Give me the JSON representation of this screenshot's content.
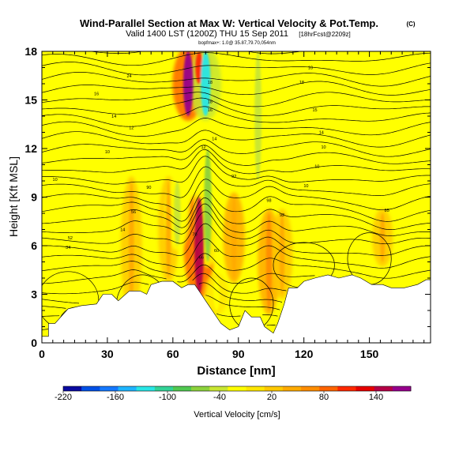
{
  "chart_data": {
    "type": "heatmap",
    "title": "Wind-Parallel Section at Max W: Vertical Velocity & Pot.Temp.",
    "title_badge": "(C)",
    "subtitle": "Valid 1400 LST (1200Z) THU 15 Sep 2011",
    "subtitle_note": "[18hrFcst@2209z]",
    "info_line": "bopfmax+: 1.0@ 35.87,79.70,054nm",
    "xlabel": "Distance [nm]",
    "ylabel": "Height [Kft MSL]",
    "xlim": [
      0,
      178
    ],
    "ylim": [
      0,
      18
    ],
    "x_ticks": [
      0,
      30,
      60,
      90,
      120,
      150
    ],
    "y_ticks": [
      0,
      3,
      6,
      9,
      12,
      15,
      18
    ],
    "colorbar_label": "Vertical Velocity [cm/s]",
    "colorbar_tick_labels": [
      "-220",
      "-160",
      "-100",
      "-40",
      "20",
      "80",
      "140"
    ],
    "colorbar_range": [
      -220,
      180
    ],
    "colorbar_colors": [
      "#0a0aa0",
      "#0050e6",
      "#1478ff",
      "#1eb4ff",
      "#28e6e6",
      "#32d296",
      "#50c850",
      "#8cd23c",
      "#c8e632",
      "#ffff00",
      "#ffe600",
      "#ffc800",
      "#ffaa00",
      "#ff8c00",
      "#ff6400",
      "#ff2800",
      "#e60000",
      "#b40046",
      "#96008c"
    ],
    "background_value": 20,
    "updraft_features": [
      {
        "x": 41,
        "z_range": [
          2,
          10
        ],
        "value": 45
      },
      {
        "x": 58,
        "z_range": [
          4,
          10
        ],
        "value": 40
      },
      {
        "x": 72,
        "z_range": [
          3,
          9
        ],
        "value": 150
      },
      {
        "x": 88,
        "z_range": [
          4,
          9
        ],
        "value": 50
      },
      {
        "x": 104,
        "z_range": [
          2,
          8
        ],
        "value": 60
      },
      {
        "x": 110,
        "z_range": [
          3,
          8
        ],
        "value": 45
      },
      {
        "x": 156,
        "z_range": [
          5,
          8
        ],
        "value": 40
      },
      {
        "x": 67,
        "z_range": [
          14,
          18
        ],
        "value": 160
      },
      {
        "x": 72,
        "z_range": [
          16,
          18
        ],
        "value": 100
      }
    ],
    "downdraft_features": [
      {
        "x": 62,
        "z_range": [
          6,
          10
        ],
        "value": -40
      },
      {
        "x": 75,
        "z_range": [
          14,
          18
        ],
        "value": -120
      },
      {
        "x": 76,
        "z_range": [
          5,
          12
        ],
        "value": -60
      },
      {
        "x": 99,
        "z_range": [
          10,
          18
        ],
        "value": -50
      },
      {
        "x": 80,
        "z_range": [
          2,
          4
        ],
        "value": -30
      }
    ],
    "theta_contour_labels": [
      {
        "x": 40,
        "z": 16.5,
        "text": "24"
      },
      {
        "x": 25,
        "z": 15.4,
        "text": "16"
      },
      {
        "x": 33,
        "z": 14.0,
        "text": "14"
      },
      {
        "x": 41,
        "z": 13.3,
        "text": "12"
      },
      {
        "x": 30,
        "z": 11.8,
        "text": "10"
      },
      {
        "x": 6,
        "z": 10.1,
        "text": "10"
      },
      {
        "x": 49,
        "z": 9.6,
        "text": "90"
      },
      {
        "x": 42,
        "z": 8.1,
        "text": "56"
      },
      {
        "x": 37,
        "z": 7.0,
        "text": "14"
      },
      {
        "x": 13,
        "z": 6.5,
        "text": "52"
      },
      {
        "x": 12,
        "z": 5.9,
        "text": "34"
      },
      {
        "x": 70,
        "z": 6.7,
        "text": "70"
      },
      {
        "x": 73,
        "z": 5.3,
        "text": "66"
      },
      {
        "x": 80,
        "z": 5.7,
        "text": "60"
      },
      {
        "x": 77,
        "z": 16.1,
        "text": "18"
      },
      {
        "x": 77,
        "z": 14.9,
        "text": "18"
      },
      {
        "x": 77,
        "z": 14.4,
        "text": "16"
      },
      {
        "x": 79,
        "z": 12.6,
        "text": "14"
      },
      {
        "x": 74,
        "z": 12.1,
        "text": "12"
      },
      {
        "x": 88,
        "z": 10.3,
        "text": "92"
      },
      {
        "x": 104,
        "z": 8.8,
        "text": "98"
      },
      {
        "x": 110,
        "z": 7.9,
        "text": "92"
      },
      {
        "x": 123,
        "z": 17.0,
        "text": "10"
      },
      {
        "x": 119,
        "z": 16.1,
        "text": "18"
      },
      {
        "x": 125,
        "z": 14.4,
        "text": "15"
      },
      {
        "x": 128,
        "z": 13.0,
        "text": "14"
      },
      {
        "x": 129,
        "z": 12.1,
        "text": "10"
      },
      {
        "x": 126,
        "z": 10.9,
        "text": "10"
      },
      {
        "x": 121,
        "z": 9.7,
        "text": "10"
      },
      {
        "x": 158,
        "z": 8.2,
        "text": "85"
      }
    ]
  }
}
